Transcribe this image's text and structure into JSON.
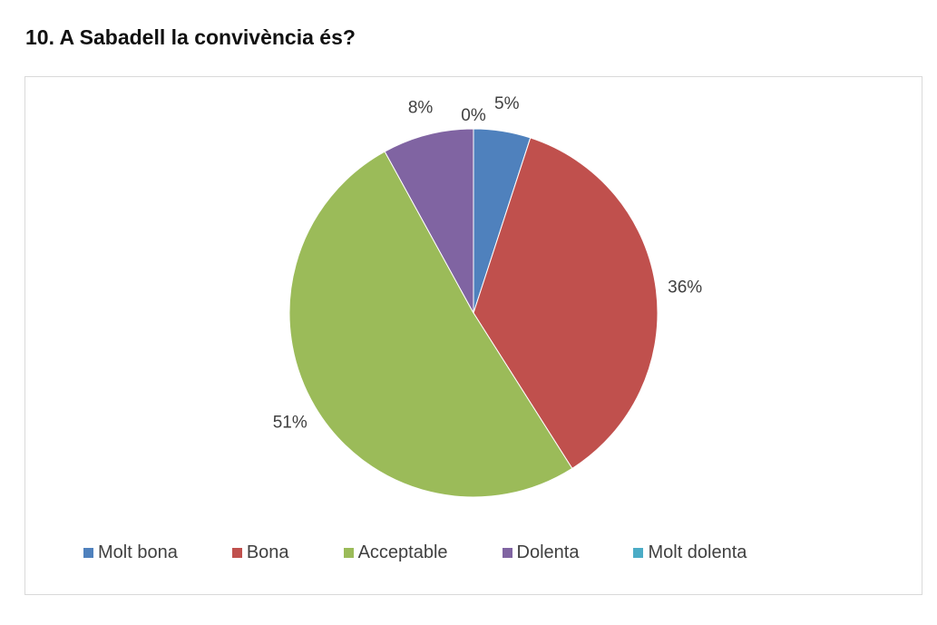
{
  "chart_data": {
    "type": "pie",
    "title": "10. A Sabadell la convivència és?",
    "categories": [
      "Molt bona",
      "Bona",
      "Acceptable",
      "Dolenta",
      "Molt dolenta"
    ],
    "values": [
      5,
      36,
      51,
      8,
      0
    ],
    "data_labels": [
      "5%",
      "36%",
      "51%",
      "8%",
      "0%"
    ],
    "colors": [
      "#4f81bd",
      "#c0504d",
      "#9bbb59",
      "#8064a2",
      "#4bacc6"
    ],
    "legend_position": "bottom"
  }
}
